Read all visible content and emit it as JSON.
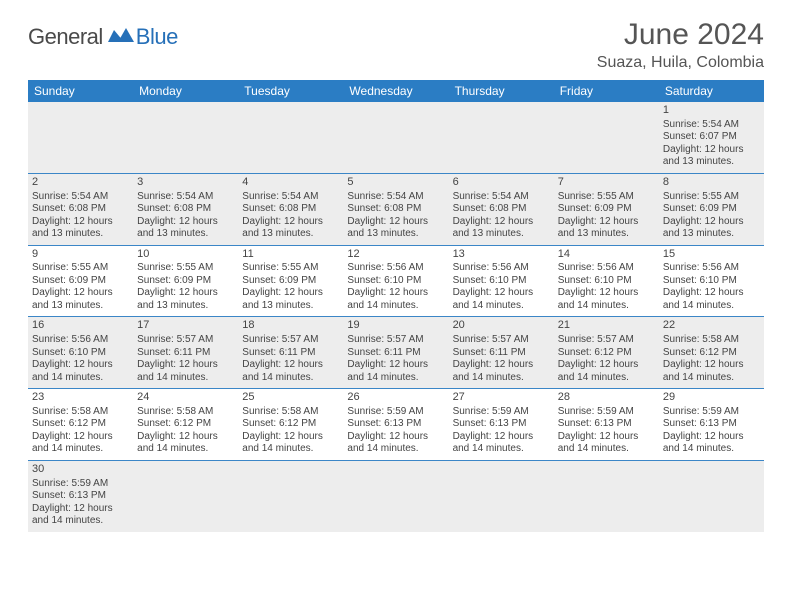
{
  "logo": {
    "general": "General",
    "blue": "Blue"
  },
  "title": "June 2024",
  "location": "Suaza, Huila, Colombia",
  "colors": {
    "header_bg": "#2b7dc4",
    "header_text": "#ffffff",
    "row_odd_bg": "#ededed",
    "row_even_bg": "#ffffff",
    "cell_border": "#3b86c7",
    "title_color": "#555555",
    "logo_blue": "#2670b8",
    "logo_gray": "#4a4a4a"
  },
  "day_headers": [
    "Sunday",
    "Monday",
    "Tuesday",
    "Wednesday",
    "Thursday",
    "Friday",
    "Saturday"
  ],
  "weeks": [
    [
      null,
      null,
      null,
      null,
      null,
      null,
      {
        "n": "1",
        "sr": "5:54 AM",
        "ss": "6:07 PM",
        "dl": "12 hours",
        "dm": "and 13 minutes."
      }
    ],
    [
      {
        "n": "2",
        "sr": "5:54 AM",
        "ss": "6:08 PM",
        "dl": "12 hours",
        "dm": "and 13 minutes."
      },
      {
        "n": "3",
        "sr": "5:54 AM",
        "ss": "6:08 PM",
        "dl": "12 hours",
        "dm": "and 13 minutes."
      },
      {
        "n": "4",
        "sr": "5:54 AM",
        "ss": "6:08 PM",
        "dl": "12 hours",
        "dm": "and 13 minutes."
      },
      {
        "n": "5",
        "sr": "5:54 AM",
        "ss": "6:08 PM",
        "dl": "12 hours",
        "dm": "and 13 minutes."
      },
      {
        "n": "6",
        "sr": "5:54 AM",
        "ss": "6:08 PM",
        "dl": "12 hours",
        "dm": "and 13 minutes."
      },
      {
        "n": "7",
        "sr": "5:55 AM",
        "ss": "6:09 PM",
        "dl": "12 hours",
        "dm": "and 13 minutes."
      },
      {
        "n": "8",
        "sr": "5:55 AM",
        "ss": "6:09 PM",
        "dl": "12 hours",
        "dm": "and 13 minutes."
      }
    ],
    [
      {
        "n": "9",
        "sr": "5:55 AM",
        "ss": "6:09 PM",
        "dl": "12 hours",
        "dm": "and 13 minutes."
      },
      {
        "n": "10",
        "sr": "5:55 AM",
        "ss": "6:09 PM",
        "dl": "12 hours",
        "dm": "and 13 minutes."
      },
      {
        "n": "11",
        "sr": "5:55 AM",
        "ss": "6:09 PM",
        "dl": "12 hours",
        "dm": "and 13 minutes."
      },
      {
        "n": "12",
        "sr": "5:56 AM",
        "ss": "6:10 PM",
        "dl": "12 hours",
        "dm": "and 14 minutes."
      },
      {
        "n": "13",
        "sr": "5:56 AM",
        "ss": "6:10 PM",
        "dl": "12 hours",
        "dm": "and 14 minutes."
      },
      {
        "n": "14",
        "sr": "5:56 AM",
        "ss": "6:10 PM",
        "dl": "12 hours",
        "dm": "and 14 minutes."
      },
      {
        "n": "15",
        "sr": "5:56 AM",
        "ss": "6:10 PM",
        "dl": "12 hours",
        "dm": "and 14 minutes."
      }
    ],
    [
      {
        "n": "16",
        "sr": "5:56 AM",
        "ss": "6:10 PM",
        "dl": "12 hours",
        "dm": "and 14 minutes."
      },
      {
        "n": "17",
        "sr": "5:57 AM",
        "ss": "6:11 PM",
        "dl": "12 hours",
        "dm": "and 14 minutes."
      },
      {
        "n": "18",
        "sr": "5:57 AM",
        "ss": "6:11 PM",
        "dl": "12 hours",
        "dm": "and 14 minutes."
      },
      {
        "n": "19",
        "sr": "5:57 AM",
        "ss": "6:11 PM",
        "dl": "12 hours",
        "dm": "and 14 minutes."
      },
      {
        "n": "20",
        "sr": "5:57 AM",
        "ss": "6:11 PM",
        "dl": "12 hours",
        "dm": "and 14 minutes."
      },
      {
        "n": "21",
        "sr": "5:57 AM",
        "ss": "6:12 PM",
        "dl": "12 hours",
        "dm": "and 14 minutes."
      },
      {
        "n": "22",
        "sr": "5:58 AM",
        "ss": "6:12 PM",
        "dl": "12 hours",
        "dm": "and 14 minutes."
      }
    ],
    [
      {
        "n": "23",
        "sr": "5:58 AM",
        "ss": "6:12 PM",
        "dl": "12 hours",
        "dm": "and 14 minutes."
      },
      {
        "n": "24",
        "sr": "5:58 AM",
        "ss": "6:12 PM",
        "dl": "12 hours",
        "dm": "and 14 minutes."
      },
      {
        "n": "25",
        "sr": "5:58 AM",
        "ss": "6:12 PM",
        "dl": "12 hours",
        "dm": "and 14 minutes."
      },
      {
        "n": "26",
        "sr": "5:59 AM",
        "ss": "6:13 PM",
        "dl": "12 hours",
        "dm": "and 14 minutes."
      },
      {
        "n": "27",
        "sr": "5:59 AM",
        "ss": "6:13 PM",
        "dl": "12 hours",
        "dm": "and 14 minutes."
      },
      {
        "n": "28",
        "sr": "5:59 AM",
        "ss": "6:13 PM",
        "dl": "12 hours",
        "dm": "and 14 minutes."
      },
      {
        "n": "29",
        "sr": "5:59 AM",
        "ss": "6:13 PM",
        "dl": "12 hours",
        "dm": "and 14 minutes."
      }
    ],
    [
      {
        "n": "30",
        "sr": "5:59 AM",
        "ss": "6:13 PM",
        "dl": "12 hours",
        "dm": "and 14 minutes."
      },
      null,
      null,
      null,
      null,
      null,
      null
    ]
  ],
  "labels": {
    "sunrise": "Sunrise:",
    "sunset": "Sunset:",
    "daylight": "Daylight:"
  }
}
